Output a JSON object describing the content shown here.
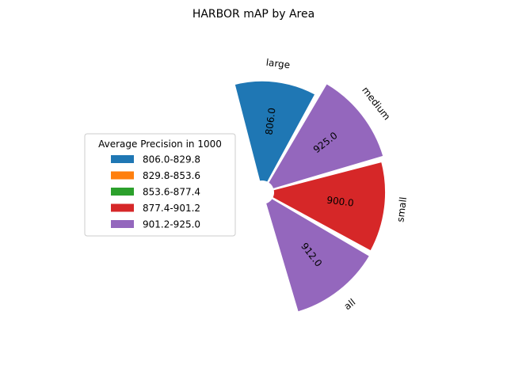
{
  "chart_data": {
    "type": "bar",
    "subtype": "polar-bar",
    "title": "HARBOR mAP by Area",
    "categories": [
      "large",
      "medium",
      "small",
      "all"
    ],
    "values": [
      806.0,
      925.0,
      900.0,
      912.0
    ],
    "value_labels": [
      "806.0",
      "925.0",
      "900.0",
      "912.0"
    ],
    "bar_colors": [
      "#1f77b4",
      "#9467bd",
      "#d62728",
      "#9467bd"
    ],
    "legend": {
      "title": "Average Precision in 1000",
      "placement": "center-left",
      "entries": [
        {
          "label": "806.0-829.8",
          "color": "#1f77b4"
        },
        {
          "label": "829.8-853.6",
          "color": "#ff7f0e"
        },
        {
          "label": "853.6-877.4",
          "color": "#2ca02c"
        },
        {
          "label": "877.4-901.2",
          "color": "#d62728"
        },
        {
          "label": "901.2-925.0",
          "color": "#9467bd"
        }
      ]
    },
    "grid": false
  }
}
